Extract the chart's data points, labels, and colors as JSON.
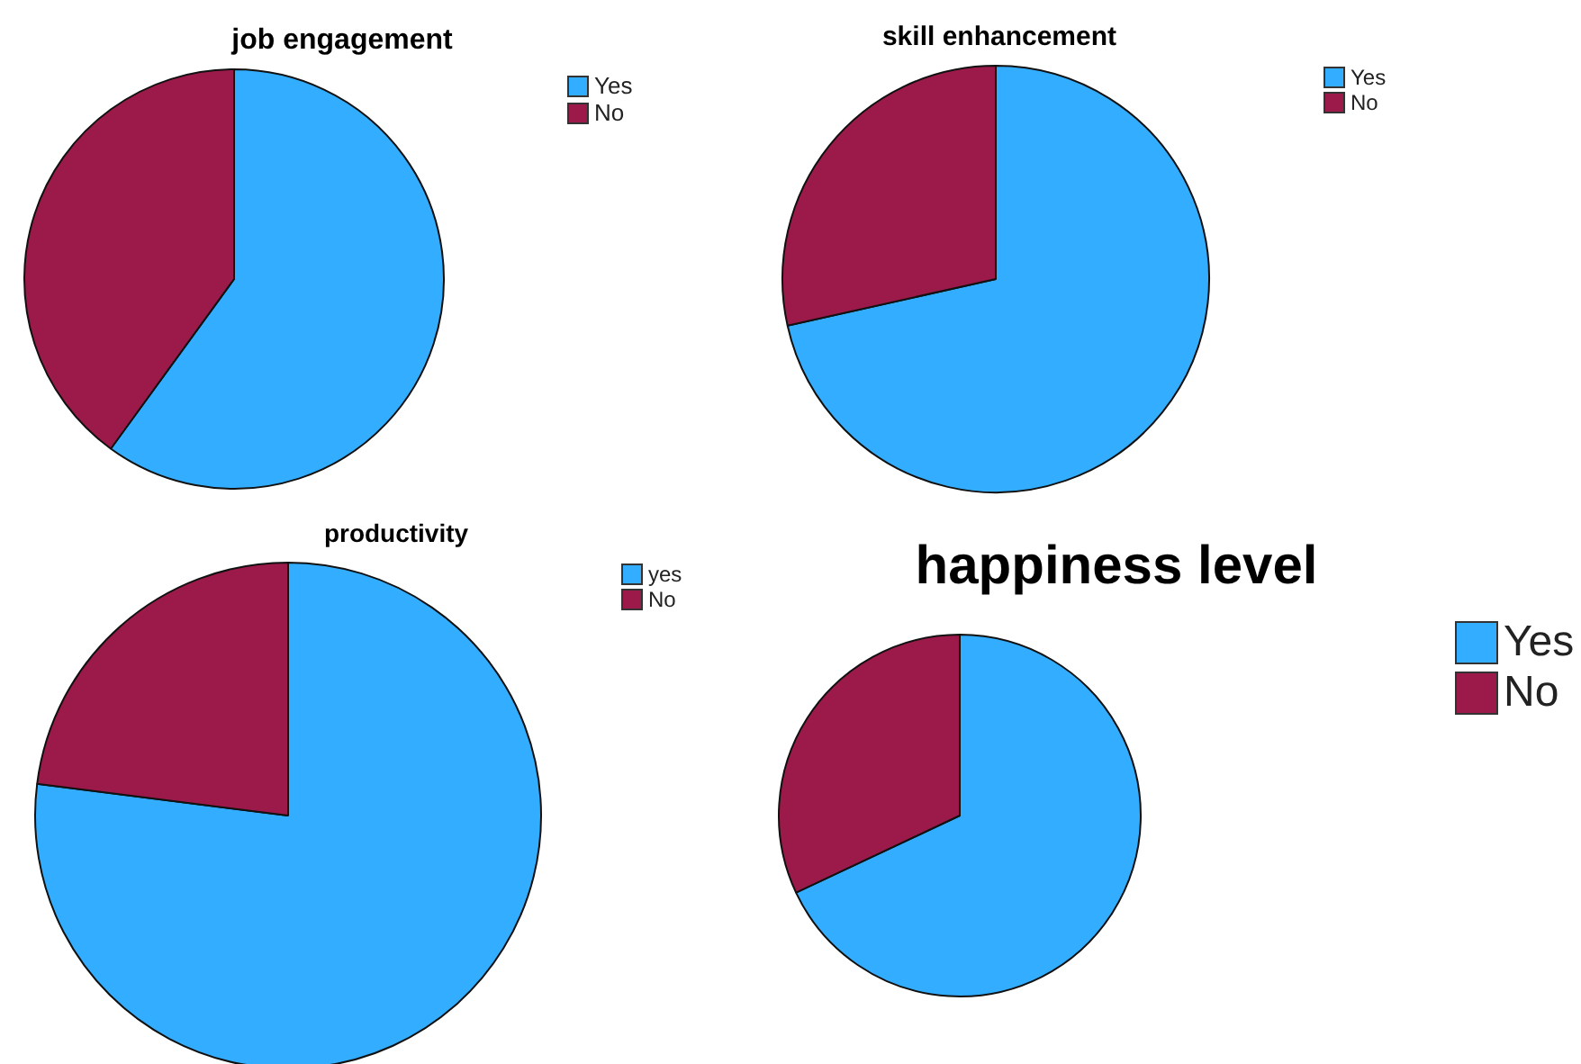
{
  "chart_data": [
    {
      "type": "pie",
      "title": "job engagement",
      "categories": [
        "Yes",
        "No"
      ],
      "values": [
        60,
        40
      ],
      "colors": [
        "#33adff",
        "#9b1a4a"
      ],
      "legend": "top right"
    },
    {
      "type": "pie",
      "title": "skill enhancement",
      "categories": [
        "Yes",
        "No"
      ],
      "values": [
        71.5,
        28.5
      ],
      "colors": [
        "#33adff",
        "#9b1a4a"
      ],
      "legend": "top right"
    },
    {
      "type": "pie",
      "title": "productivity",
      "categories": [
        "yes",
        "No"
      ],
      "values": [
        77,
        23
      ],
      "colors": [
        "#33adff",
        "#9b1a4a"
      ],
      "legend": "top right"
    },
    {
      "type": "pie",
      "title": "happiness level",
      "categories": [
        "Yes",
        "No"
      ],
      "values": [
        68,
        32
      ],
      "colors": [
        "#33adff",
        "#9b1a4a"
      ],
      "legend": "right"
    }
  ]
}
